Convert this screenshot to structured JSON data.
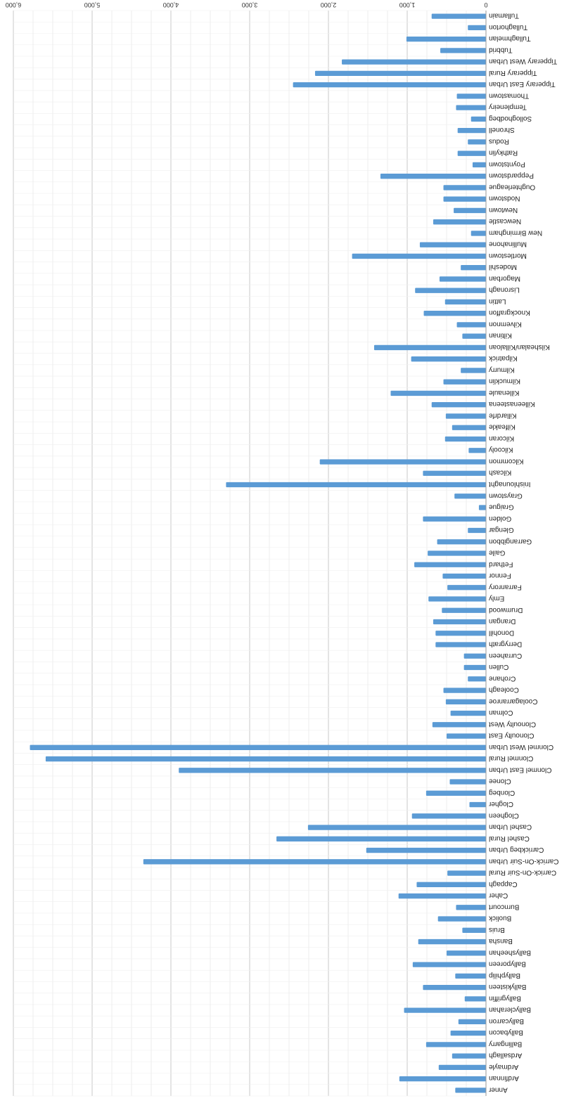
{
  "chart_data": {
    "type": "bar",
    "orientation": "horizontal",
    "rotation": "upside-down",
    "title": "",
    "xlabel": "",
    "ylabel": "",
    "xlim": [
      0,
      6000
    ],
    "ticks": [
      "0",
      "1,000",
      "2,000",
      "3,000",
      "4,000",
      "5,000",
      "6,000"
    ],
    "grid": true,
    "legend": "none",
    "bar_color": "#5b9bd5",
    "categories": [
      "Tullamain",
      "Tullaghorton",
      "Tullaghmelan",
      "Tubbrid",
      "Tipperary West Urban",
      "Tipperary Rural",
      "Tipperary East Urban",
      "Thomastown",
      "Templeneiry",
      "Solloghodbeg",
      "Shronell",
      "Rodus",
      "Rathkylin",
      "Poyntstown",
      "Peppardstown",
      "Oughterleague",
      "Nodstown",
      "Newtown",
      "Newcastle",
      "New Birmingham",
      "Mullinahone",
      "Mortlestown",
      "Modeshil",
      "Magorban",
      "Lisronagh",
      "Lattin",
      "Knockgraffon",
      "Kilvemnon",
      "Kiltinan",
      "Kilshealan/Killaloan",
      "Kilpatrick",
      "Kilmurry",
      "Kilmucklin",
      "Killenaule",
      "Killeenasteena",
      "Killardrfe",
      "Kilfeakle",
      "Kilcoran",
      "Kilcooly",
      "Kilcommon",
      "Kilcash",
      "Inishlounaght",
      "Graystown",
      "Graigue",
      "Golden",
      "Glengar",
      "Garrangibbon",
      "Gaile",
      "Fethard",
      "Fennor",
      "Farranrory",
      "Emly",
      "Drumwood",
      "Drangan",
      "Donohill",
      "Derrygrath",
      "Curraheen",
      "Cullen",
      "Crohane",
      "Cooleagh",
      "Coolagarranroe",
      "Colman",
      "Clonoulty West",
      "Clonoulty East",
      "Clonmel West Urban",
      "Clonmel Rural",
      "Clonmel East Urban",
      "Clonee",
      "Clonbeg",
      "Clogher",
      "Clogheen",
      "Cashel Urban",
      "Cashel Rural",
      "Carrickbeg Urban",
      "Carrick-On-Suir Urban",
      "Carrick-On-Suir Rural",
      "Cappagh",
      "Caher",
      "Burncourt",
      "Buolick",
      "Bruis",
      "Bansha",
      "Ballysheehan",
      "Ballyporeen",
      "Ballyphilip",
      "Ballykisteen",
      "Ballygriffin",
      "Ballyclerahan",
      "Ballycarron",
      "Ballybacon",
      "Ballingarry",
      "Ardsallagh",
      "Ardmayle",
      "Ardfinnan",
      "Anner"
    ],
    "values": [
      690,
      230,
      1010,
      580,
      1830,
      2170,
      2450,
      370,
      380,
      190,
      360,
      230,
      360,
      170,
      1340,
      540,
      540,
      410,
      670,
      190,
      840,
      1700,
      320,
      590,
      900,
      520,
      790,
      370,
      300,
      1420,
      950,
      320,
      540,
      1210,
      690,
      510,
      430,
      520,
      220,
      2110,
      800,
      3300,
      400,
      90,
      800,
      230,
      620,
      740,
      910,
      550,
      490,
      730,
      560,
      670,
      640,
      640,
      280,
      280,
      230,
      540,
      510,
      450,
      680,
      500,
      5790,
      5590,
      3900,
      460,
      760,
      210,
      940,
      2260,
      2660,
      1520,
      4350,
      490,
      880,
      1110,
      380,
      610,
      300,
      860,
      500,
      930,
      390,
      800,
      270,
      1040,
      350,
      450,
      760,
      430,
      600,
      1100,
      390
    ]
  }
}
